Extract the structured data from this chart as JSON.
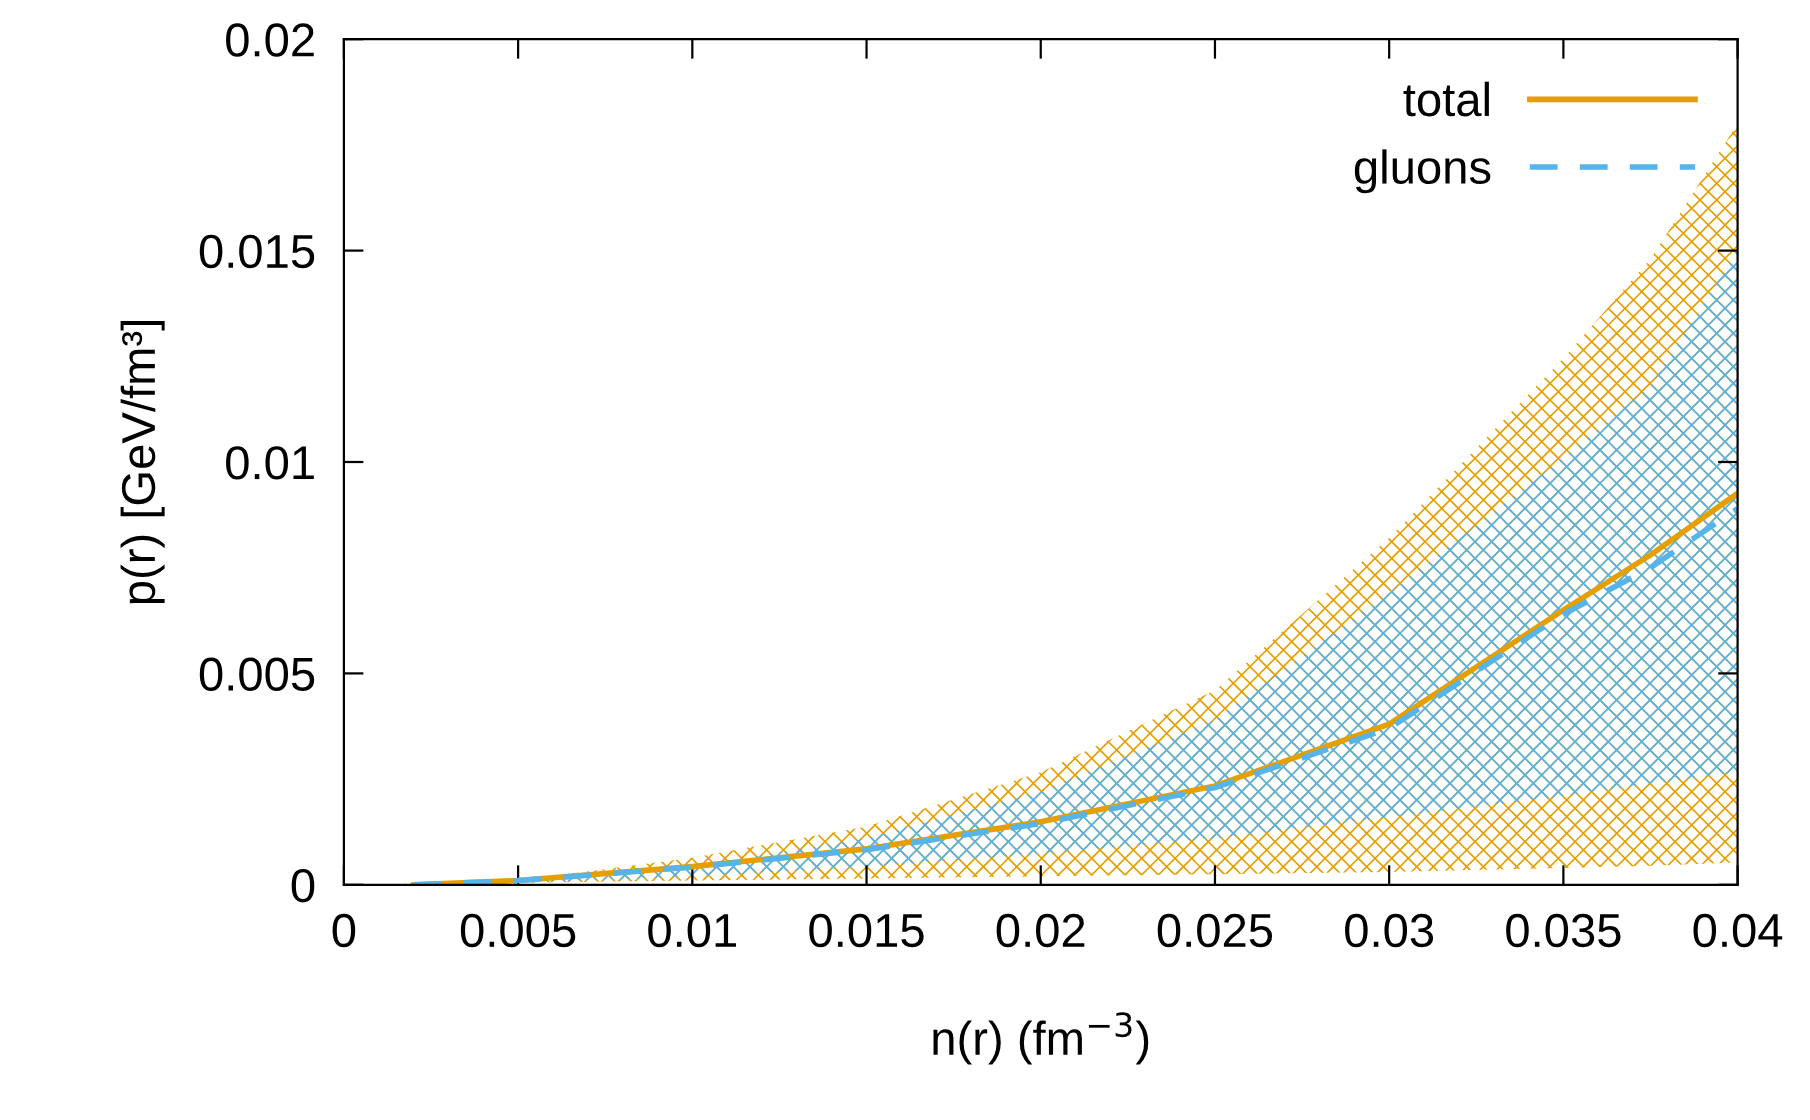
{
  "chart_data": {
    "type": "line",
    "xlabel": "n(r) (fm$^{−3}$)",
    "ylabel": "p(r) [GeV/fm³]",
    "xlim": [
      0,
      0.04
    ],
    "ylim": [
      0,
      0.02
    ],
    "xticks": [
      0,
      0.005,
      0.01,
      0.015,
      0.02,
      0.025,
      0.03,
      0.035,
      0.04
    ],
    "yticks": [
      0,
      0.005,
      0.01,
      0.015,
      0.02
    ],
    "grid": false,
    "legend": "top right",
    "marker": "none",
    "series": [
      {
        "name": "total",
        "color": "#e69f00",
        "line_style": "solid",
        "x": [
          0.002,
          0.005,
          0.01,
          0.015,
          0.02,
          0.025,
          0.03,
          0.035,
          0.0375,
          0.04
        ],
        "values": [
          0,
          0.0001,
          0.00043,
          0.00085,
          0.00149,
          0.00234,
          0.0038,
          0.0065,
          0.0078,
          0.00926
        ],
        "lower": [
          0,
          5e-05,
          0.0001,
          0.00015,
          0.0002,
          0.00025,
          0.0003,
          0.0004,
          0.00045,
          0.00053
        ],
        "upper": [
          0,
          0.0001,
          0.00064,
          0.00138,
          0.00266,
          0.0046,
          0.0082,
          0.01245,
          0.0148,
          0.018
        ]
      },
      {
        "name": "gluons",
        "color": "#56b4e9",
        "line_style": "dashed",
        "x": [
          0.002,
          0.005,
          0.01,
          0.015,
          0.02,
          0.025,
          0.03,
          0.035,
          0.0375,
          0.04
        ],
        "values": [
          0,
          0.0001,
          0.00042,
          0.00083,
          0.00145,
          0.0023,
          0.0037,
          0.0064,
          0.0075,
          0.0089
        ],
        "lower": [
          0,
          5e-05,
          0.0002,
          0.00043,
          0.00074,
          0.0011,
          0.0016,
          0.0021,
          0.0024,
          0.00266
        ],
        "upper": [
          0,
          0.0001,
          0.00043,
          0.0011,
          0.0022,
          0.0039,
          0.0069,
          0.0101,
          0.0118,
          0.015
        ]
      }
    ]
  }
}
